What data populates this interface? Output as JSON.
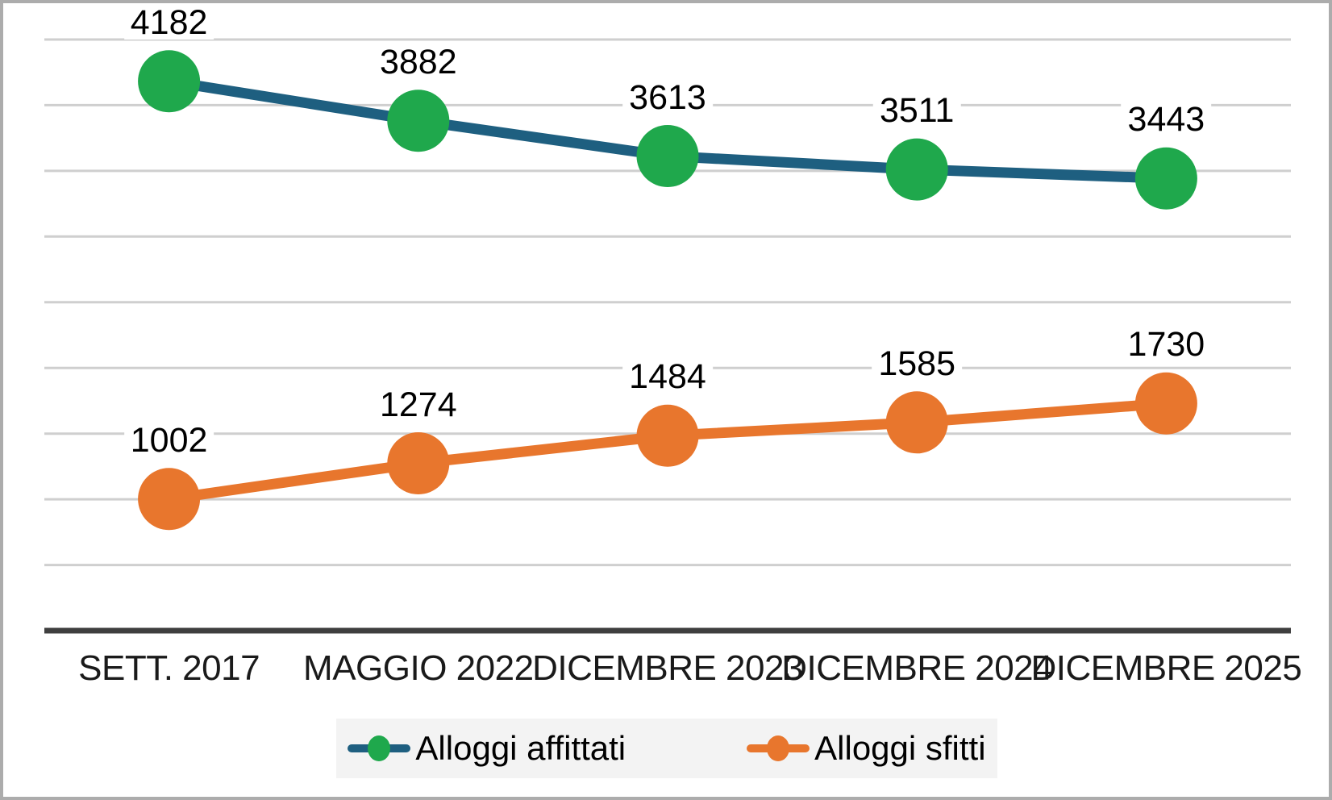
{
  "chart_data": {
    "type": "line",
    "categories": [
      "SETT. 2017",
      "MAGGIO 2022",
      "DICEMBRE 2023",
      "DICEMBRE 2024",
      "DICEMBRE 2025"
    ],
    "series": [
      {
        "name": "Alloggi affittati",
        "values": [
          4182,
          3882,
          3613,
          3511,
          3443
        ],
        "line_color": "#1E5F80",
        "marker_color": "#1FA84C"
      },
      {
        "name": "Alloggi sfitti",
        "values": [
          1002,
          1274,
          1484,
          1585,
          1730
        ],
        "line_color": "#E8762D",
        "marker_color": "#E8762D"
      }
    ],
    "title": "",
    "xlabel": "",
    "ylabel": "",
    "ylim": [
      0,
      4500
    ],
    "gridline_step": 500,
    "grid": true,
    "data_labels": true,
    "legend_position": "bottom"
  },
  "colors": {
    "gridline": "#CFCFCF",
    "axis_line": "#3F3F3F",
    "label_text": "#000000",
    "axis_label_text": "#1a1a1a",
    "legend_background": "#F3F3F3",
    "frame_border": "#ACACAC",
    "background": "#FFFFFF"
  }
}
